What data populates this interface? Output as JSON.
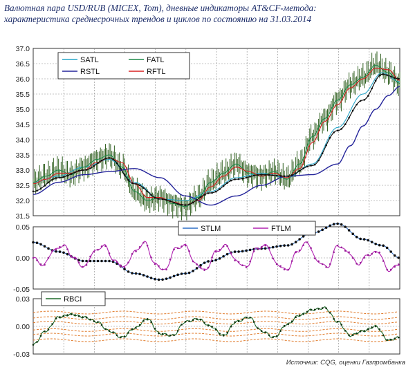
{
  "title_line1": "Валютная пара USD/RUB (MICEX, Tom), дневные  индикаторы AT&CF-метода:",
  "title_line2": "характеристика среднесрочных трендов и циклов по состоянию на 31.03.2014",
  "source": "Источник: CQG, оценки Газпромбанка",
  "colors": {
    "price": "#2f5f1f",
    "satl": "#27a6c9",
    "fatl": "#1e8a4a",
    "rstl": "#23239a",
    "rftl": "#d82020",
    "dotted_black": "#111111",
    "stlm": "#2f6fc6",
    "ftlm": "#b020b0",
    "rbci": "#1e6a2a",
    "bands": "#e07a2a"
  },
  "chart_data": [
    {
      "type": "line",
      "x_count": 290,
      "ylim": [
        31.5,
        37.0
      ],
      "yticks": [
        "37.0",
        "36.5",
        "36.0",
        "35.5",
        "35.0",
        "34.5",
        "34.0",
        "33.5",
        "33.0",
        "32.5",
        "32.0",
        "31.5"
      ],
      "series": [
        {
          "name": "SATL",
          "key": "satl",
          "x": [
            0,
            20,
            40,
            60,
            80,
            100,
            120,
            140,
            160,
            180,
            200,
            220,
            240,
            260,
            275,
            289
          ],
          "values": [
            32.6,
            32.8,
            33.1,
            33.35,
            32.6,
            32.05,
            32.0,
            32.3,
            32.75,
            32.9,
            32.75,
            33.2,
            34.4,
            35.5,
            36.2,
            35.9
          ]
        },
        {
          "name": "FATL",
          "key": "fatl",
          "x": [
            0,
            10,
            20,
            30,
            40,
            50,
            60,
            70,
            80,
            90,
            100,
            110,
            120,
            130,
            140,
            150,
            160,
            170,
            180,
            190,
            200,
            210,
            220,
            230,
            240,
            250,
            260,
            270,
            280,
            289
          ],
          "values": [
            32.6,
            32.8,
            33.0,
            32.85,
            33.1,
            33.35,
            33.5,
            33.1,
            32.3,
            32.0,
            32.1,
            31.9,
            31.8,
            32.1,
            32.6,
            32.9,
            33.2,
            32.9,
            32.8,
            32.95,
            32.7,
            33.2,
            34.1,
            34.7,
            35.3,
            35.8,
            36.05,
            36.45,
            36.2,
            35.85
          ]
        },
        {
          "name": "RSTL",
          "key": "rstl",
          "x": [
            0,
            20,
            40,
            60,
            80,
            100,
            120,
            140,
            160,
            180,
            200,
            220,
            240,
            250,
            260,
            270,
            280,
            289
          ],
          "values": [
            32.2,
            32.6,
            32.85,
            32.95,
            33.05,
            32.75,
            32.15,
            31.85,
            32.15,
            32.5,
            32.8,
            32.85,
            33.2,
            33.8,
            34.45,
            35.0,
            35.45,
            35.75
          ]
        },
        {
          "name": "RFTL",
          "key": "rftl",
          "x": [
            0,
            10,
            20,
            30,
            40,
            50,
            60,
            70,
            80,
            90,
            100,
            110,
            120,
            130,
            140,
            150,
            160,
            170,
            180,
            190,
            200,
            210,
            220,
            230,
            240,
            250,
            260,
            270,
            280,
            289
          ],
          "values": [
            32.55,
            32.7,
            32.9,
            32.9,
            33.0,
            33.25,
            33.4,
            33.25,
            32.55,
            32.1,
            32.1,
            31.95,
            31.85,
            32.0,
            32.45,
            32.8,
            33.1,
            32.95,
            32.8,
            32.9,
            32.75,
            33.05,
            33.9,
            34.6,
            35.15,
            35.7,
            36.0,
            36.35,
            36.3,
            35.95
          ]
        },
        {
          "name": "",
          "key": "dotted_black",
          "x": [
            0,
            20,
            40,
            60,
            80,
            100,
            120,
            140,
            160,
            180,
            200,
            220,
            240,
            260,
            275,
            289
          ],
          "values": [
            32.3,
            32.75,
            33.0,
            33.4,
            32.55,
            32.05,
            31.85,
            32.25,
            32.7,
            32.85,
            32.8,
            33.15,
            34.3,
            35.3,
            36.15,
            36.0
          ]
        }
      ],
      "legend": [
        "SATL",
        "FATL",
        "RSTL",
        "RFTL"
      ],
      "legend_position": "top-left"
    },
    {
      "type": "line",
      "x_count": 290,
      "ylim": [
        -0.05,
        0.05
      ],
      "yticks": [
        "0.05",
        "0.00",
        "-0.05"
      ],
      "series": [
        {
          "name": "STLM",
          "key": "stlm",
          "x": [
            0,
            20,
            40,
            60,
            80,
            100,
            120,
            140,
            160,
            180,
            200,
            220,
            240,
            260,
            275,
            289
          ],
          "values": [
            0.025,
            0.01,
            -0.005,
            -0.005,
            -0.025,
            -0.035,
            -0.025,
            -0.005,
            0.01,
            0.015,
            0.02,
            0.04,
            0.055,
            0.03,
            0.02,
            0.0
          ]
        },
        {
          "name": "FTLM",
          "key": "ftlm",
          "x": [
            0,
            8,
            16,
            24,
            32,
            40,
            48,
            56,
            64,
            72,
            80,
            88,
            96,
            104,
            112,
            120,
            128,
            136,
            144,
            152,
            160,
            168,
            176,
            184,
            192,
            200,
            208,
            216,
            224,
            232,
            240,
            248,
            256,
            264,
            272,
            280,
            289
          ],
          "values": [
            0.0,
            -0.012,
            0.012,
            0.02,
            0.0,
            -0.015,
            0.01,
            0.02,
            -0.005,
            -0.015,
            0.01,
            0.025,
            -0.01,
            -0.02,
            0.015,
            0.02,
            -0.01,
            -0.02,
            0.01,
            0.02,
            -0.005,
            -0.015,
            0.015,
            0.02,
            -0.01,
            -0.02,
            0.01,
            0.025,
            -0.005,
            -0.015,
            0.02,
            0.01,
            -0.01,
            0.005,
            0.01,
            -0.02,
            -0.01
          ]
        }
      ],
      "legend": [
        "STLM",
        "FTLM"
      ],
      "legend_position": "top-right"
    },
    {
      "type": "line",
      "x_count": 290,
      "ylim": [
        -0.03,
        0.03
      ],
      "yticks": [
        "0.03",
        "0.00",
        "-0.03"
      ],
      "series": [
        {
          "name": "RBCI",
          "key": "rbci",
          "x": [
            0,
            10,
            20,
            30,
            40,
            50,
            60,
            70,
            80,
            90,
            100,
            110,
            120,
            130,
            140,
            150,
            160,
            170,
            180,
            190,
            200,
            210,
            220,
            230,
            240,
            250,
            260,
            270,
            280,
            289
          ],
          "values": [
            -0.02,
            -0.005,
            0.01,
            0.013,
            0.01,
            0.005,
            -0.005,
            -0.012,
            -0.002,
            0.008,
            -0.008,
            -0.01,
            0.005,
            0.008,
            0.0,
            -0.01,
            0.005,
            0.01,
            -0.005,
            -0.012,
            0.002,
            0.012,
            0.018,
            0.02,
            0.005,
            -0.01,
            -0.005,
            0.0,
            -0.015,
            -0.012
          ]
        }
      ],
      "bands": [
        0.015,
        0.009,
        0.004,
        -0.004,
        -0.009,
        -0.015
      ],
      "legend": [
        "RBCI"
      ],
      "legend_position": "top-left"
    }
  ]
}
